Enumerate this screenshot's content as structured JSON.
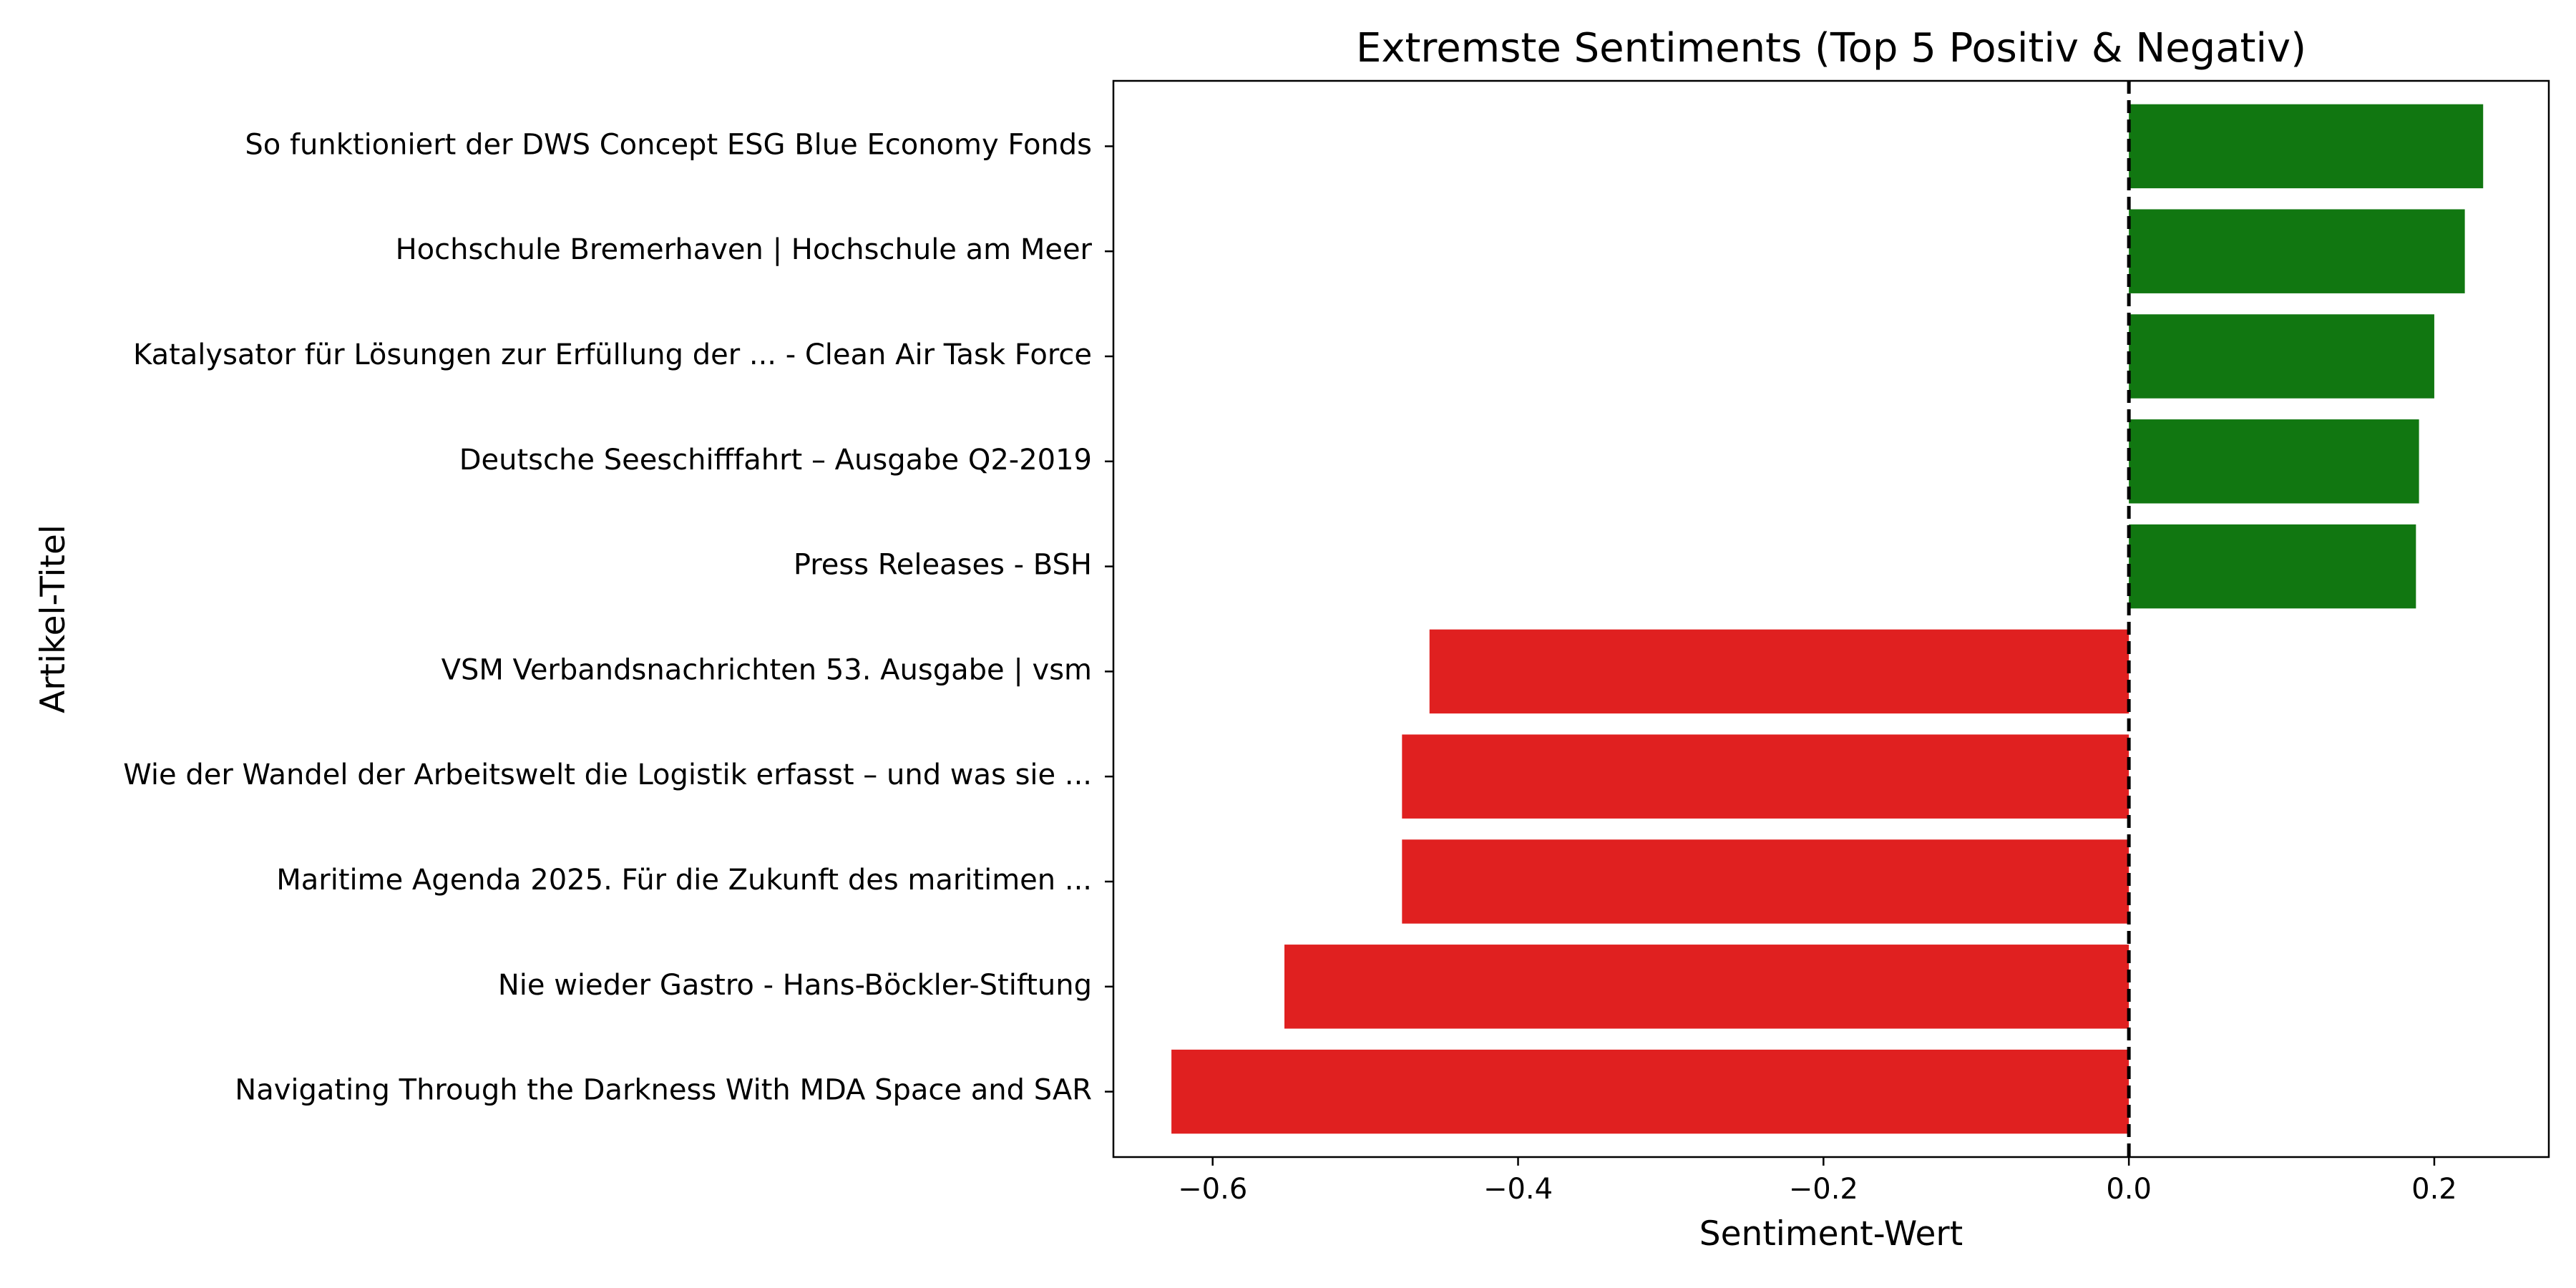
{
  "chart_data": {
    "type": "bar",
    "orientation": "horizontal",
    "title": "Extremste Sentiments (Top 5 Positiv & Negativ)",
    "xlabel": "Sentiment-Wert",
    "ylabel": "Artikel-Titel",
    "xlim": [
      -0.665,
      0.275
    ],
    "xticks": [
      -0.6,
      -0.4,
      -0.2,
      0.0,
      0.2
    ],
    "xtick_labels": [
      "−0.6",
      "−0.4",
      "−0.2",
      "0.0",
      "0.2"
    ],
    "reference_line": {
      "x": 0.0,
      "style": "dashed",
      "color": "#000000"
    },
    "grid": false,
    "categories": [
      "So funktioniert der DWS Concept ESG Blue Economy Fonds",
      "Hochschule Bremerhaven | Hochschule am Meer",
      "Katalysator für Lösungen zur Erfüllung der ... - Clean Air Task Force",
      "Deutsche Seeschifffahrt – Ausgabe Q2-2019",
      "Press Releases - BSH",
      "VSM Verbandsnachrichten 53. Ausgabe | vsm",
      "Wie der Wandel der Arbeitswelt die Logistik erfasst – und was sie ...",
      "Maritime Agenda 2025. Für die Zukunft des maritimen ...",
      "Nie wieder Gastro - Hans-Böckler-Stiftung",
      "Navigating Through the Darkness With MDA Space and SAR"
    ],
    "values": [
      0.232,
      0.22,
      0.2,
      0.19,
      0.188,
      -0.458,
      -0.476,
      -0.476,
      -0.553,
      -0.627
    ],
    "colors": {
      "positive": "#117711",
      "negative": "#e02020"
    }
  }
}
